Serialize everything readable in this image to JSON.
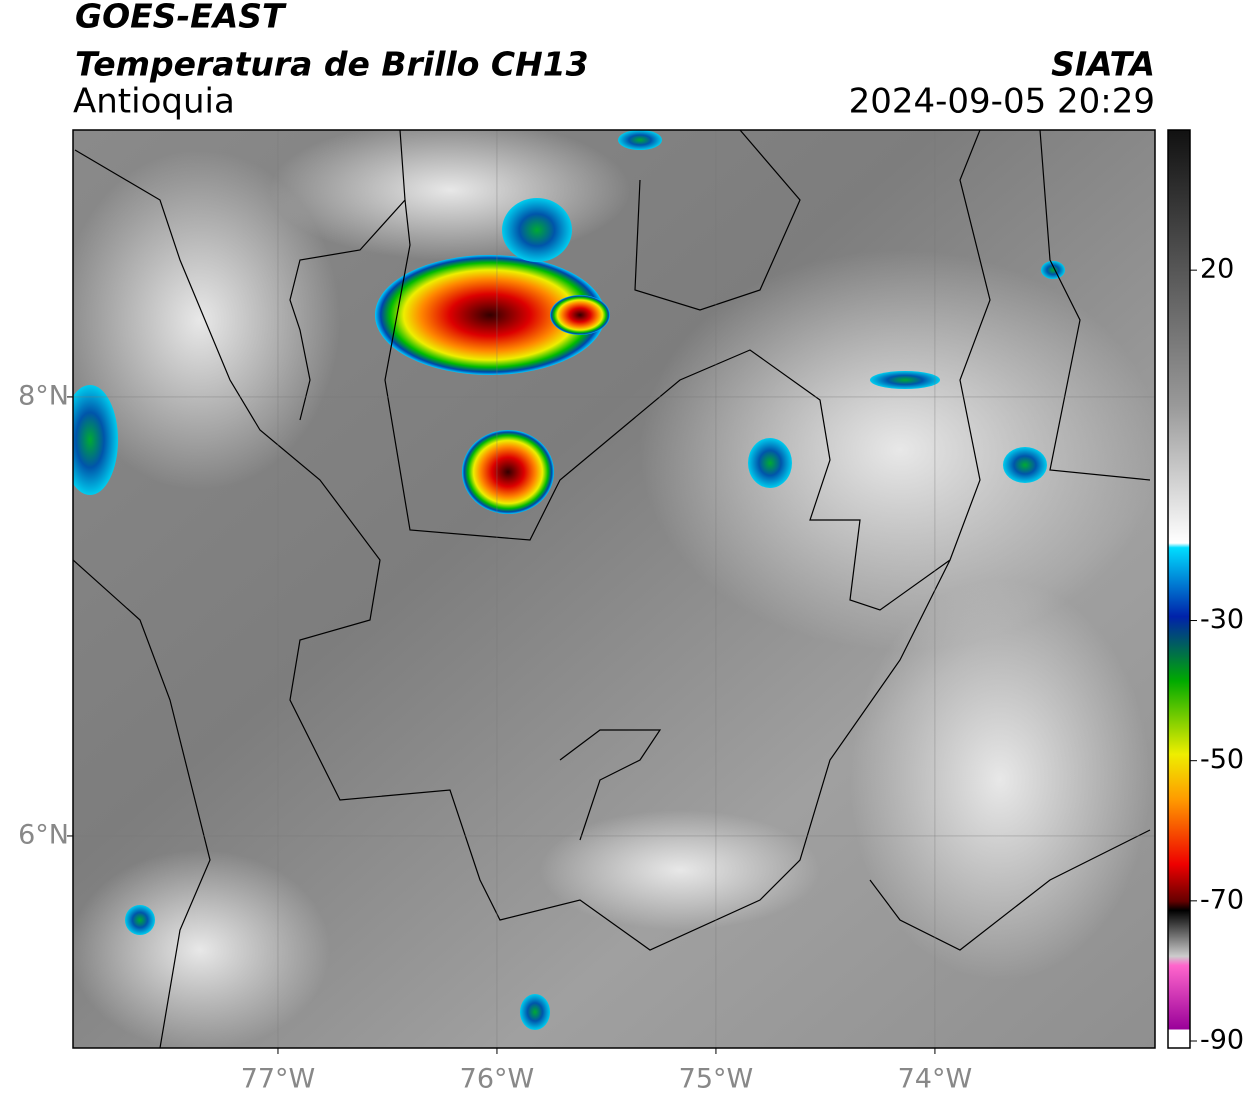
{
  "header": {
    "satellite": "GOES-EAST",
    "product": "Temperatura de Brillo CH13",
    "region": "Antioquia",
    "source": "SIATA",
    "datetime": "2024-09-05 20:29"
  },
  "map": {
    "xlim": [
      -77.936,
      -72.995
    ],
    "ylim": [
      5.034,
      9.216
    ],
    "xticks": [
      {
        "value": -77,
        "label": "77°W"
      },
      {
        "value": -76,
        "label": "76°W"
      },
      {
        "value": -75,
        "label": "75°W"
      },
      {
        "value": -74,
        "label": "74°W"
      }
    ],
    "yticks": [
      {
        "value": 8,
        "label": "8°N"
      },
      {
        "value": 6,
        "label": "6°N"
      }
    ],
    "grid": true
  },
  "colorbar": {
    "lim": [
      -91,
      40
    ],
    "ticks": [
      20,
      -30,
      -50,
      -70,
      -90
    ]
  }
}
